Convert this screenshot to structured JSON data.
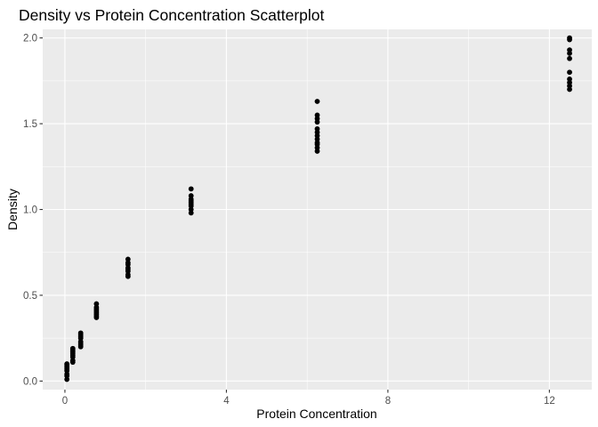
{
  "chart_data": {
    "type": "scatter",
    "title": "Density vs Protein Concentration Scatterplot",
    "xlabel": "Protein Concentration",
    "ylabel": "Density",
    "xlim": [
      -0.55,
      13.05
    ],
    "ylim": [
      -0.05,
      2.05
    ],
    "x_ticks": [
      0,
      4,
      8,
      12
    ],
    "x_tick_labels": [
      "0",
      "4",
      "8",
      "12"
    ],
    "y_ticks": [
      0.0,
      0.5,
      1.0,
      1.5,
      2.0
    ],
    "y_tick_labels": [
      "0.0",
      "0.5",
      "1.0",
      "1.5",
      "2.0"
    ],
    "grid": true,
    "point_color": "#000000",
    "panel_color": "#ebebeb",
    "grid_color": "#ffffff",
    "x": [
      0.049,
      0.049,
      0.049,
      0.049,
      0.049,
      0.049,
      0.049,
      0.049,
      0.195,
      0.195,
      0.195,
      0.195,
      0.195,
      0.195,
      0.195,
      0.195,
      0.391,
      0.391,
      0.391,
      0.391,
      0.391,
      0.391,
      0.391,
      0.391,
      0.781,
      0.781,
      0.781,
      0.781,
      0.781,
      0.781,
      0.781,
      0.781,
      1.5625,
      1.5625,
      1.5625,
      1.5625,
      1.5625,
      1.5625,
      1.5625,
      1.5625,
      3.125,
      3.125,
      3.125,
      3.125,
      3.125,
      3.125,
      3.125,
      3.125,
      3.125,
      6.25,
      6.25,
      6.25,
      6.25,
      6.25,
      6.25,
      6.25,
      6.25,
      6.25,
      6.25,
      6.25,
      6.25,
      12.5,
      12.5,
      12.5,
      12.5,
      12.5,
      12.5,
      12.5,
      12.5,
      12.5,
      12.5
    ],
    "y": [
      0.01,
      0.03,
      0.04,
      0.06,
      0.07,
      0.08,
      0.09,
      0.1,
      0.11,
      0.12,
      0.14,
      0.15,
      0.16,
      0.17,
      0.18,
      0.19,
      0.2,
      0.21,
      0.22,
      0.23,
      0.25,
      0.26,
      0.27,
      0.28,
      0.37,
      0.38,
      0.39,
      0.4,
      0.41,
      0.42,
      0.43,
      0.45,
      0.61,
      0.62,
      0.64,
      0.65,
      0.66,
      0.68,
      0.69,
      0.71,
      0.98,
      1.0,
      1.02,
      1.03,
      1.04,
      1.05,
      1.06,
      1.08,
      1.12,
      1.34,
      1.36,
      1.38,
      1.39,
      1.41,
      1.43,
      1.45,
      1.47,
      1.51,
      1.53,
      1.55,
      1.63,
      1.7,
      1.72,
      1.74,
      1.76,
      1.8,
      1.88,
      1.91,
      1.93,
      1.99,
      2.0
    ]
  }
}
